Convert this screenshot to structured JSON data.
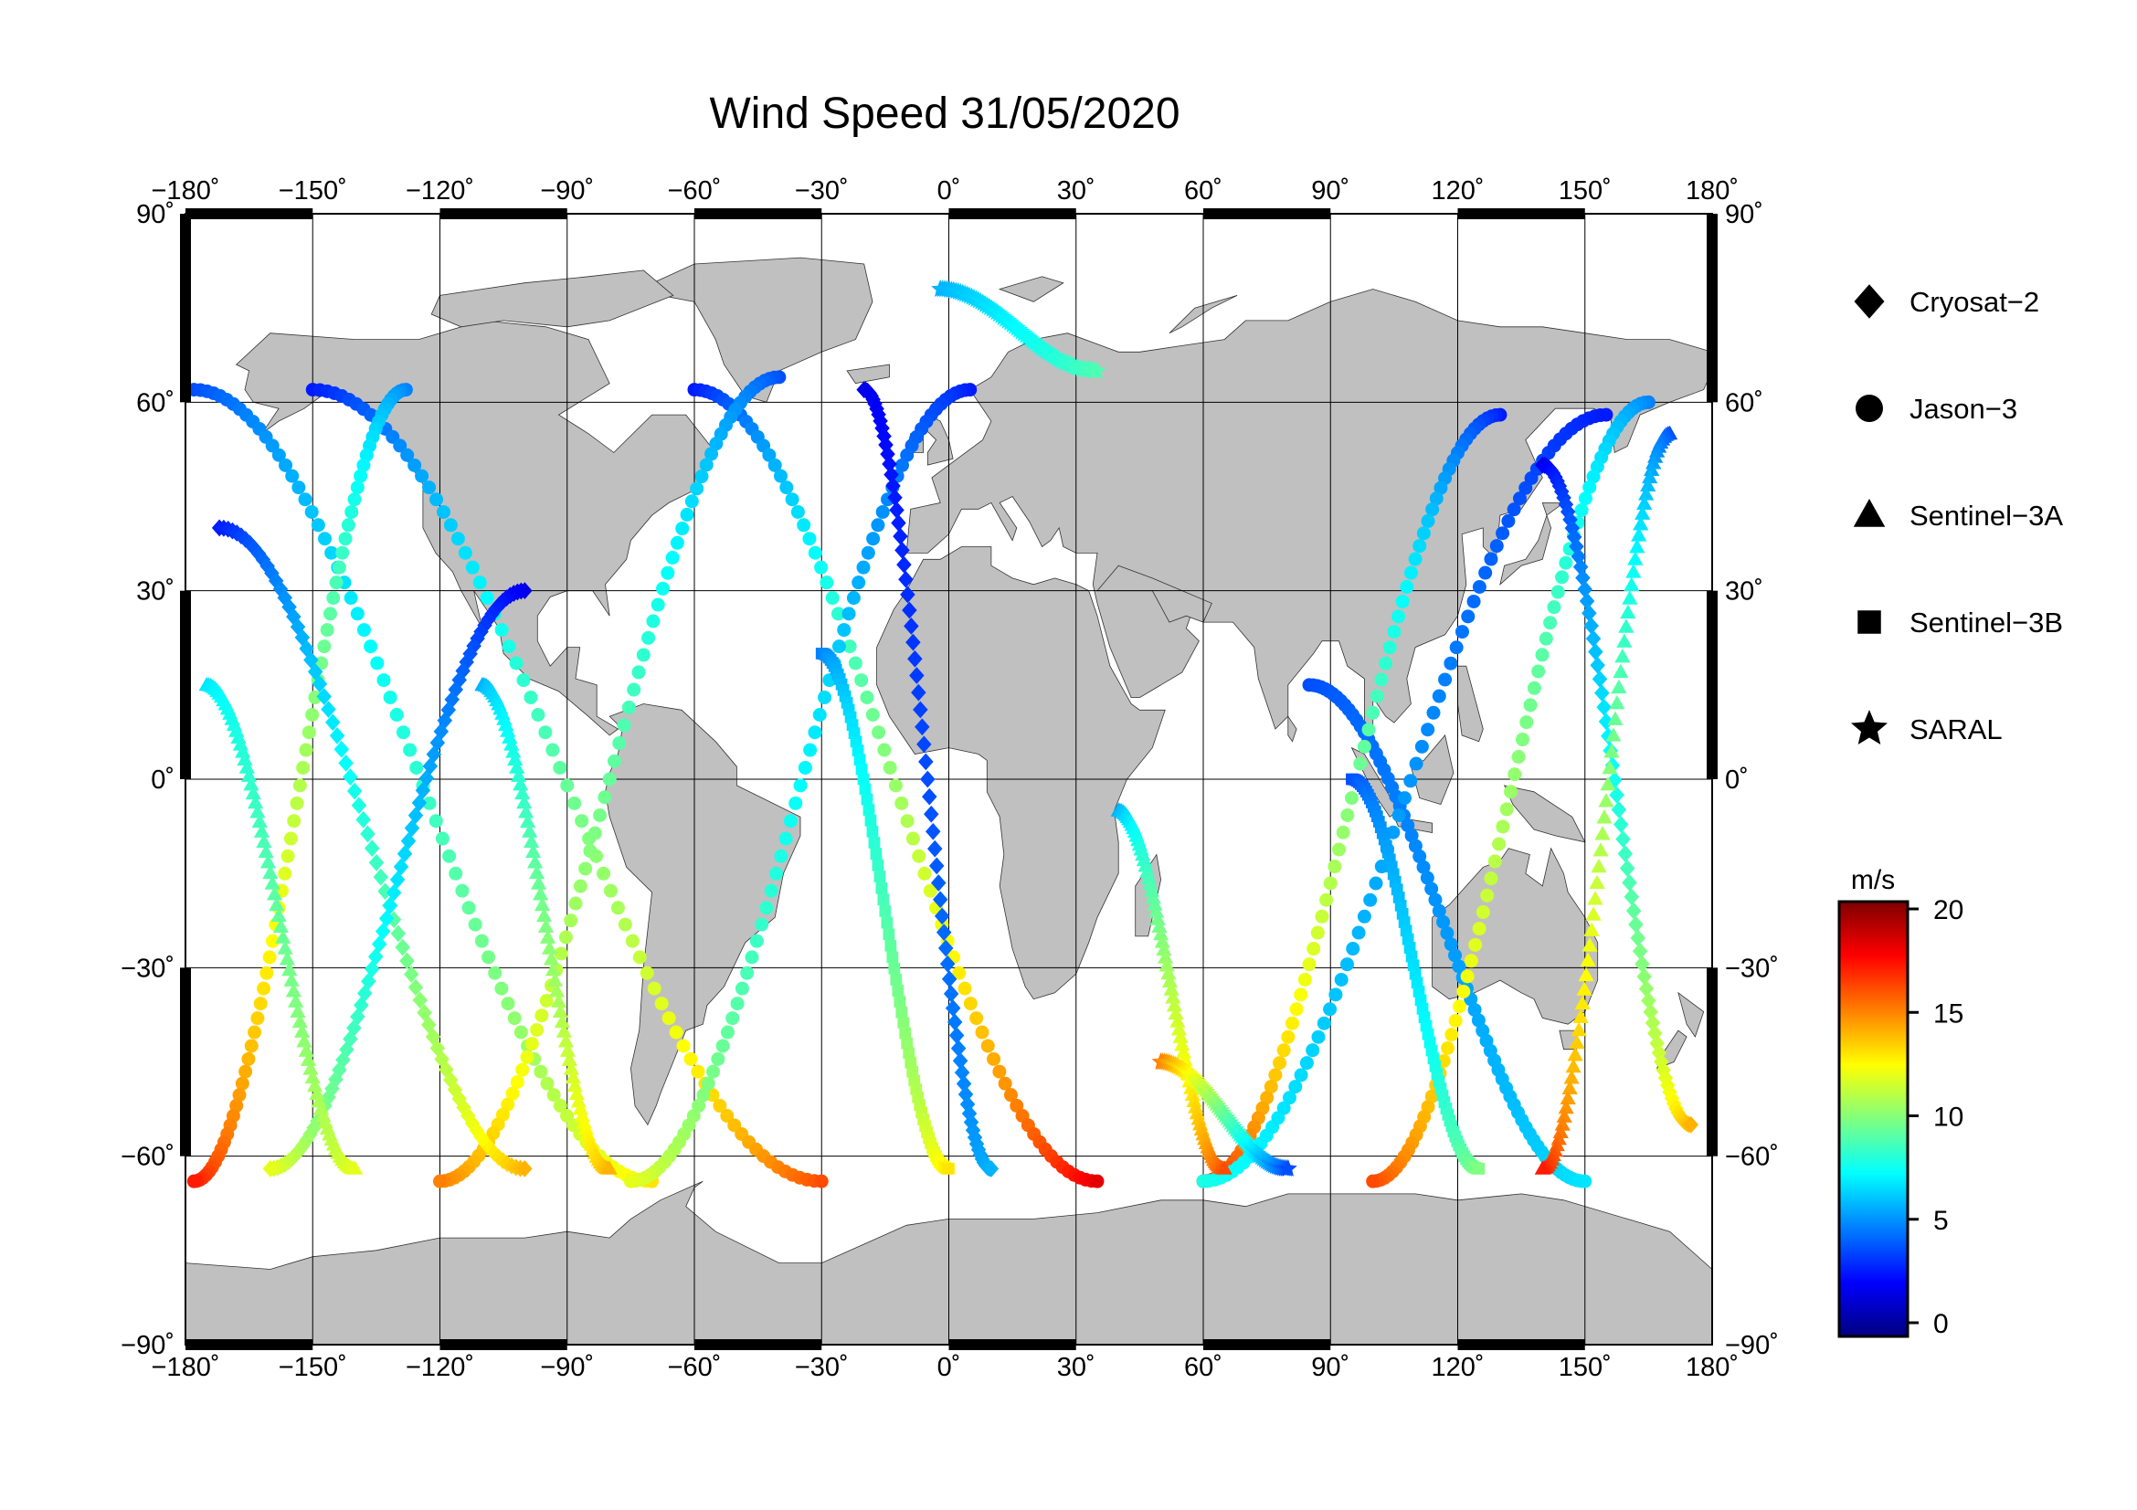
{
  "title": "Wind Speed 31/05/2020",
  "x_ticks": [
    {
      "value": -180,
      "label": "−180˚"
    },
    {
      "value": -150,
      "label": "−150˚"
    },
    {
      "value": -120,
      "label": "−120˚"
    },
    {
      "value": -90,
      "label": "−90˚"
    },
    {
      "value": -60,
      "label": "−60˚"
    },
    {
      "value": -30,
      "label": "−30˚"
    },
    {
      "value": 0,
      "label": "0˚"
    },
    {
      "value": 30,
      "label": "30˚"
    },
    {
      "value": 60,
      "label": "60˚"
    },
    {
      "value": 90,
      "label": "90˚"
    },
    {
      "value": 120,
      "label": "120˚"
    },
    {
      "value": 150,
      "label": "150˚"
    },
    {
      "value": 180,
      "label": "180˚"
    }
  ],
  "y_ticks": [
    {
      "value": 90,
      "label": "90˚"
    },
    {
      "value": 60,
      "label": "60˚"
    },
    {
      "value": 30,
      "label": "30˚"
    },
    {
      "value": 0,
      "label": "0˚"
    },
    {
      "value": -30,
      "label": "−30˚"
    },
    {
      "value": -60,
      "label": "−60˚"
    },
    {
      "value": -90,
      "label": "−90˚"
    }
  ],
  "legend": [
    {
      "name": "Cryosat−2",
      "marker": "diamond"
    },
    {
      "name": "Jason−3",
      "marker": "circle"
    },
    {
      "name": "Sentinel−3A",
      "marker": "triangle"
    },
    {
      "name": "Sentinel−3B",
      "marker": "square"
    },
    {
      "name": "SARAL",
      "marker": "star"
    }
  ],
  "colorbar": {
    "unit": "m/s",
    "min": 0,
    "max": 20,
    "ticks": [
      {
        "value": 0,
        "label": "0"
      },
      {
        "value": 5,
        "label": "5"
      },
      {
        "value": 10,
        "label": "10"
      },
      {
        "value": 15,
        "label": "15"
      },
      {
        "value": 20,
        "label": "20"
      }
    ],
    "colormap": "jet"
  },
  "map": {
    "projection": "equirectangular",
    "lon_range": [
      -180,
      180
    ],
    "lat_range": [
      -90,
      90
    ],
    "land_color": "#c0c0c0",
    "ocean_color": "#ffffff",
    "grid_color": "#000000"
  },
  "tracks": [
    {
      "marker": "circle",
      "lon_start": -178,
      "lon_end": -70,
      "lat_start": 62,
      "lat_end": -64,
      "v_start": 4,
      "v_end": 13
    },
    {
      "marker": "circle",
      "lon_start": -150,
      "lon_end": -30,
      "lat_start": 62,
      "lat_end": -64,
      "v_start": 3,
      "v_end": 16
    },
    {
      "marker": "circle",
      "lon_start": -128,
      "lon_end": -178,
      "lat_start": 62,
      "lat_end": -64,
      "v_start": 5,
      "v_end": 17
    },
    {
      "marker": "circle",
      "lon_start": -60,
      "lon_end": 35,
      "lat_start": 62,
      "lat_end": -64,
      "v_start": 3,
      "v_end": 18
    },
    {
      "marker": "circle",
      "lon_start": -40,
      "lon_end": -120,
      "lat_start": 64,
      "lat_end": -64,
      "v_start": 4,
      "v_end": 15
    },
    {
      "marker": "circle",
      "lon_start": 5,
      "lon_end": -75,
      "lat_start": 62,
      "lat_end": -64,
      "v_start": 3,
      "v_end": 12
    },
    {
      "marker": "circle",
      "lon_start": 85,
      "lon_end": 150,
      "lat_start": 15,
      "lat_end": -64,
      "v_start": 4,
      "v_end": 7
    },
    {
      "marker": "circle",
      "lon_start": 165,
      "lon_end": 100,
      "lat_start": 60,
      "lat_end": -64,
      "v_start": 5,
      "v_end": 16
    },
    {
      "marker": "circle",
      "lon_start": 130,
      "lon_end": 60,
      "lat_start": 58,
      "lat_end": -64,
      "v_start": 3,
      "v_end": 17
    },
    {
      "marker": "circle",
      "lon_start": 60,
      "lon_end": 155,
      "lat_start": -64,
      "lat_end": 58,
      "v_start": 8,
      "v_end": 3
    },
    {
      "marker": "diamond",
      "lon_start": -172,
      "lon_end": -100,
      "lat_start": 40,
      "lat_end": -62,
      "v_start": 3,
      "v_end": 14
    },
    {
      "marker": "diamond",
      "lon_start": -100,
      "lon_end": -160,
      "lat_start": 30,
      "lat_end": -62,
      "v_start": 2,
      "v_end": 12
    },
    {
      "marker": "diamond",
      "lon_start": -20,
      "lon_end": 10,
      "lat_start": 62,
      "lat_end": -62,
      "v_start": 2,
      "v_end": 6
    },
    {
      "marker": "diamond",
      "lon_start": 140,
      "lon_end": 175,
      "lat_start": 50,
      "lat_end": -55,
      "v_start": 2,
      "v_end": 14
    },
    {
      "marker": "triangle",
      "lon_start": -175,
      "lon_end": -140,
      "lat_start": 15,
      "lat_end": -62,
      "v_start": 7,
      "v_end": 12
    },
    {
      "marker": "triangle",
      "lon_start": -110,
      "lon_end": -80,
      "lat_start": 15,
      "lat_end": -62,
      "v_start": 6,
      "v_end": 14
    },
    {
      "marker": "triangle",
      "lon_start": 40,
      "lon_end": 65,
      "lat_start": -5,
      "lat_end": -62,
      "v_start": 6,
      "v_end": 16
    },
    {
      "marker": "triangle",
      "lon_start": 170,
      "lon_end": 140,
      "lat_start": 55,
      "lat_end": -62,
      "v_start": 4,
      "v_end": 17
    },
    {
      "marker": "square",
      "lon_start": -30,
      "lon_end": 0,
      "lat_start": 20,
      "lat_end": -62,
      "v_start": 5,
      "v_end": 13
    },
    {
      "marker": "square",
      "lon_start": 95,
      "lon_end": 125,
      "lat_start": 0,
      "lat_end": -62,
      "v_start": 4,
      "v_end": 10
    },
    {
      "marker": "star",
      "lon_start": -2,
      "lon_end": 35,
      "lat_start": 78,
      "lat_end": 65,
      "v_start": 6,
      "v_end": 9
    },
    {
      "marker": "star",
      "lon_start": 50,
      "lon_end": 80,
      "lat_start": -45,
      "lat_end": -62,
      "v_start": 15,
      "v_end": 4
    }
  ]
}
